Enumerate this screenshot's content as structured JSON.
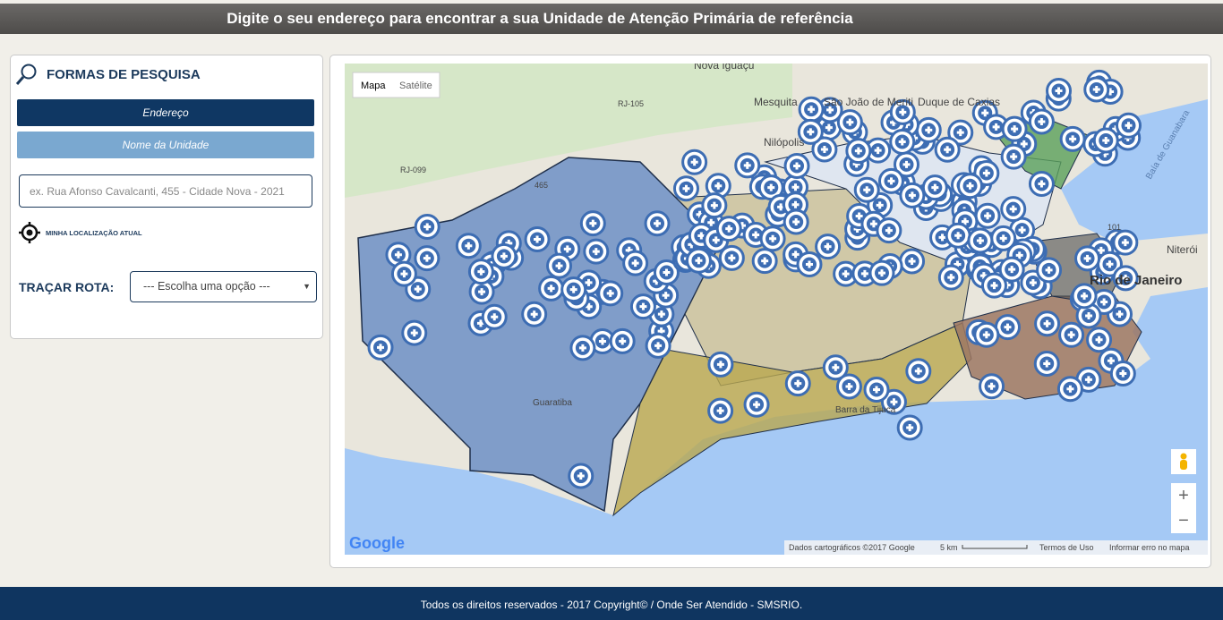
{
  "header": {
    "title": "Digite o seu endereço para encontrar a sua Unidade de Atenção Primária de referência"
  },
  "search_panel": {
    "title": "FORMAS DE PESQUISA",
    "buttons": [
      "Endereço",
      "Nome da Unidade"
    ],
    "input_placeholder": "ex.  Rua Afonso Cavalcanti, 455 - Cidade Nova - 2021",
    "location_label": "MINHA LOCALIZAÇÃO ATUAL",
    "route_label": "TRAÇAR ROTA:",
    "route_select": "--- Escolha uma opção ---"
  },
  "map": {
    "type_buttons": [
      "Mapa",
      "Satélite"
    ],
    "labels": [
      "Nova Iguaçu",
      "São João de Meriti",
      "Duque de Caxias",
      "Nilópolis",
      "Mesquita",
      "Niterói",
      "Rio de Janeiro",
      "Baía de Guanabara",
      "Barra da Tijuca",
      "Guaratiba",
      "RJ-105",
      "RJ-099",
      "101",
      "465"
    ],
    "logo": "Google",
    "attribution": [
      "Dados cartográficos ©2017 Google",
      "5 km",
      "Termos de Uso",
      "Informar erro no mapa"
    ]
  },
  "footer": {
    "text": "Todos os direitos reservados - 2017 Copyright© / Onde Ser Atendido - SMSRIO."
  }
}
